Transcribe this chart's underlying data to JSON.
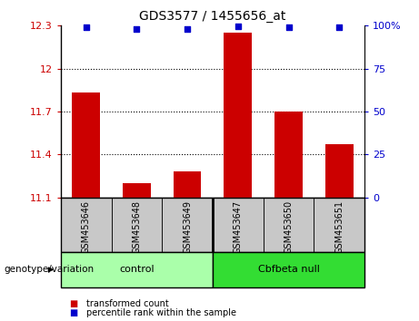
{
  "title": "GDS3577 / 1455656_at",
  "samples": [
    "GSM453646",
    "GSM453648",
    "GSM453649",
    "GSM453647",
    "GSM453650",
    "GSM453651"
  ],
  "bar_values": [
    11.83,
    11.2,
    11.28,
    12.25,
    11.7,
    11.47
  ],
  "percentile_values": [
    99,
    98,
    98,
    99.5,
    99,
    99
  ],
  "ylim_left": [
    11.1,
    12.3
  ],
  "ylim_right": [
    0,
    100
  ],
  "yticks_left": [
    11.1,
    11.4,
    11.7,
    12.0,
    12.3
  ],
  "yticks_right": [
    0,
    25,
    50,
    75,
    100
  ],
  "ytick_labels_left": [
    "11.1",
    "11.4",
    "11.7",
    "12",
    "12.3"
  ],
  "ytick_labels_right": [
    "0",
    "25",
    "50",
    "75",
    "100%"
  ],
  "groups": [
    {
      "label": "control",
      "indices": [
        0,
        1,
        2
      ],
      "color": "#AAFFAA"
    },
    {
      "label": "Cbfbeta null",
      "indices": [
        3,
        4,
        5
      ],
      "color": "#33DD33"
    }
  ],
  "bar_color": "#CC0000",
  "dot_color": "#0000CC",
  "bar_bottom": 11.1,
  "legend_items": [
    {
      "color": "#CC0000",
      "label": "transformed count"
    },
    {
      "color": "#0000CC",
      "label": "percentile rank within the sample"
    }
  ],
  "group_label": "genotype/variation",
  "xticklabel_bg": "#C8C8C8",
  "dot_size": 18
}
